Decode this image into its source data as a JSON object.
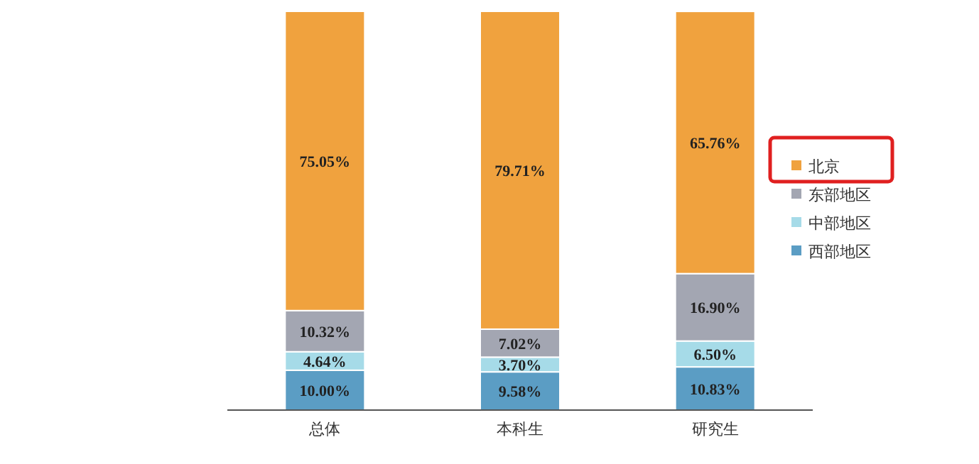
{
  "chart_data": {
    "type": "bar",
    "stacked": true,
    "legend": "right",
    "categories": [
      "总体",
      "本科生",
      "研究生"
    ],
    "series": [
      {
        "name": "西部地区",
        "color": "#5b9dc4",
        "values": [
          10.0,
          9.58,
          10.83
        ],
        "value_labels": [
          "10.00%",
          "9.58%",
          "10.83%"
        ]
      },
      {
        "name": "中部地区",
        "color": "#a6dbe8",
        "values": [
          4.64,
          3.7,
          6.5
        ],
        "value_labels": [
          "4.64%",
          "3.70%",
          "6.50%"
        ]
      },
      {
        "name": "东部地区",
        "color": "#a3a6b2",
        "values": [
          10.32,
          7.02,
          16.9
        ],
        "value_labels": [
          "10.32%",
          "7.02%",
          "16.90%"
        ]
      },
      {
        "name": "北京",
        "color": "#f0a23e",
        "values": [
          75.05,
          79.71,
          65.76
        ],
        "value_labels": [
          "75.05%",
          "79.71%",
          "65.76%"
        ]
      }
    ]
  }
}
